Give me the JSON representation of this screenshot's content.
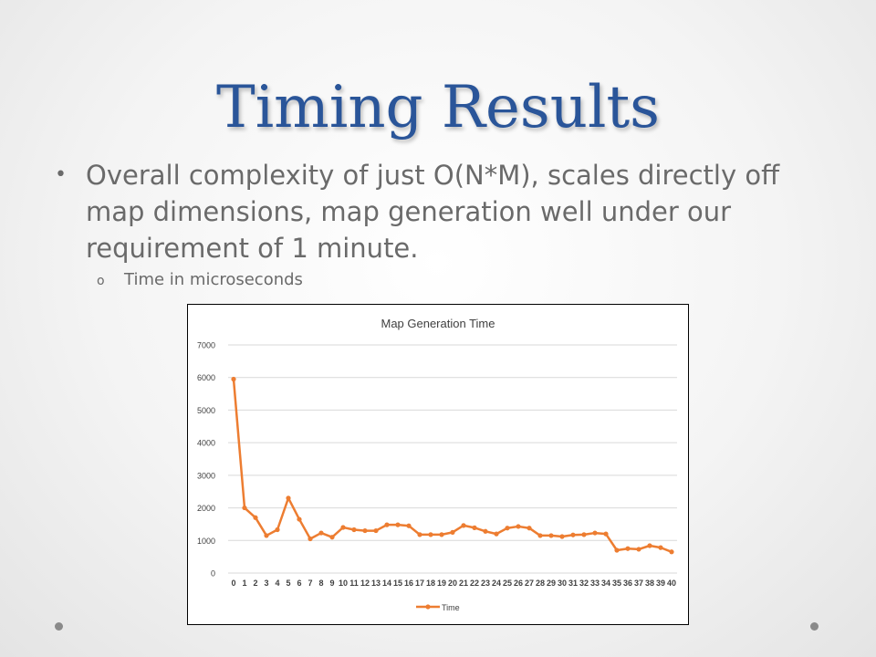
{
  "slide": {
    "title": "Timing Results",
    "bullet": "Overall complexity of just O(N*M), scales directly off map dimensions, map generation well under our requirement of 1 minute.",
    "bullet_marker": "•",
    "sub_bullet": "Time in microseconds",
    "sub_bullet_marker": "o"
  },
  "colors": {
    "title": "#2a5599",
    "body_text": "#6a6a6a",
    "series": "#ed7d31",
    "grid": "#d9d9d9"
  },
  "chart_data": {
    "type": "line",
    "title": "Map Generation Time",
    "xlabel": "",
    "ylabel": "",
    "x": [
      0,
      1,
      2,
      3,
      4,
      5,
      6,
      7,
      8,
      9,
      10,
      11,
      12,
      13,
      14,
      15,
      16,
      17,
      18,
      19,
      20,
      21,
      22,
      23,
      24,
      25,
      26,
      27,
      28,
      29,
      30,
      31,
      32,
      33,
      34,
      35,
      36,
      37,
      38,
      39,
      40
    ],
    "series": [
      {
        "name": "Time",
        "values": [
          5950,
          2000,
          1700,
          1150,
          1330,
          2300,
          1650,
          1050,
          1230,
          1100,
          1400,
          1330,
          1300,
          1300,
          1480,
          1480,
          1450,
          1180,
          1180,
          1180,
          1250,
          1460,
          1390,
          1280,
          1200,
          1380,
          1430,
          1380,
          1150,
          1150,
          1120,
          1170,
          1180,
          1230,
          1200,
          700,
          750,
          730,
          840,
          780,
          650
        ]
      }
    ],
    "ylim": [
      0,
      7000
    ],
    "yticks": [
      0,
      1000,
      2000,
      3000,
      4000,
      5000,
      6000,
      7000
    ],
    "grid": true,
    "legend": "bottom"
  }
}
